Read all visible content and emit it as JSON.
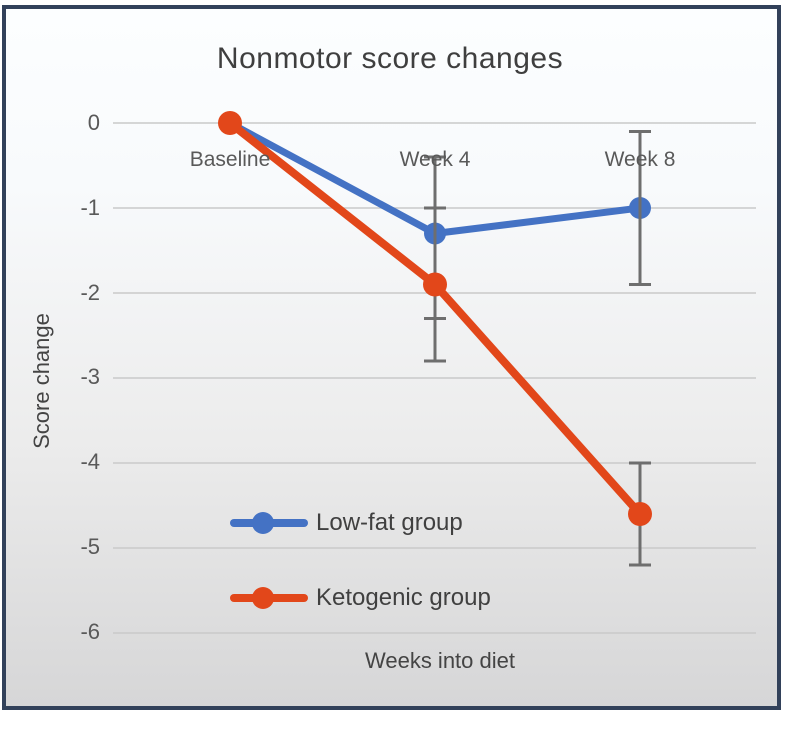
{
  "frame": {
    "border_color": "#32415a",
    "background_top": "#fcfeff",
    "background_bottom": "#d6d6d7"
  },
  "chart_data": {
    "type": "line",
    "title": "Nonmotor score changes",
    "xlabel": "Weeks into diet",
    "ylabel": "Score change",
    "categories": [
      "Baseline",
      "Week 4",
      "Week 8"
    ],
    "ytick_labels": [
      "0",
      "-1",
      "-2",
      "-3",
      "-4",
      "-5",
      "-6"
    ],
    "yticks": [
      0,
      -1,
      -2,
      -3,
      -4,
      -5,
      -6
    ],
    "ylim": [
      -6.5,
      0.5
    ],
    "grid": "horizontal",
    "gridline_color": "#c9c9c9",
    "error_bar_color": "#6e6e6e",
    "legend_position": "inside-bottom-left",
    "series": [
      {
        "name": "Low-fat group",
        "color": "#4472c4",
        "values": [
          0,
          -1.3,
          -1.0
        ],
        "error_bars": [
          null,
          {
            "high": -0.4,
            "low": -2.3
          },
          {
            "high": -0.1,
            "low": -1.9
          }
        ]
      },
      {
        "name": "Ketogenic group",
        "color": "#e2471a",
        "values": [
          0,
          -1.9,
          -4.6
        ],
        "error_bars": [
          null,
          {
            "high": -1.0,
            "low": -2.8
          },
          {
            "high": -4.0,
            "low": -5.2
          }
        ]
      }
    ]
  }
}
